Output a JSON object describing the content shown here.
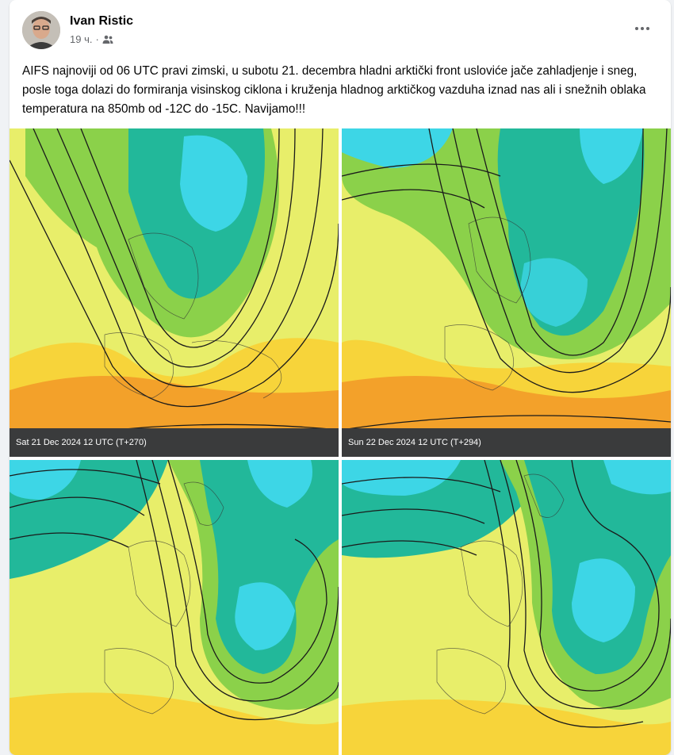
{
  "post": {
    "author": "Ivan Ristic",
    "time": "19 ч.",
    "separator": "·",
    "audience_icon": "friends-icon",
    "menu_icon": "more-options-icon",
    "text": "AIFS najnoviji od 06 UTC pravi zimski, u subotu 21. decembra hladni arktički front usloviće jače zahladjenje i sneg, posle toga dolazi do formiranja visinskog ciklona i kruženja hladnog arktičkog vazduha iznad nas ali i snežnih oblaka temperatura na 850mb od -12C do -15C. Navijamo!!!"
  },
  "maps": [
    {
      "caption": "Sat 21 Dec 2024 12 UTC (T+270)"
    },
    {
      "caption": "Sun 22 Dec 2024 12 UTC (T+294)"
    },
    {
      "caption": ""
    },
    {
      "caption": ""
    }
  ],
  "colors": {
    "cold": "#3dd6e6",
    "cool": "#22b89a",
    "mild": "#8bd14a",
    "light": "#e8ee6a",
    "warm": "#f7d43a",
    "hot": "#f3a12a",
    "caption_bg": "#3a3b3c"
  }
}
